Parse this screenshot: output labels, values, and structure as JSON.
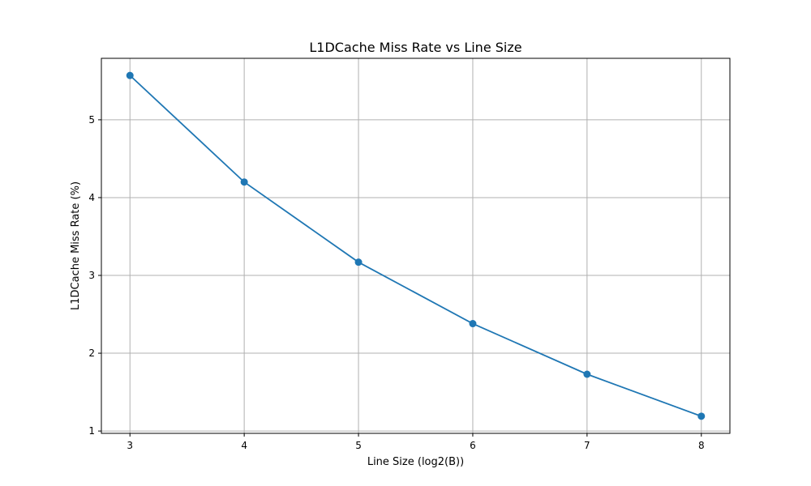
{
  "chart_data": {
    "type": "line",
    "title": "L1DCache Miss Rate vs Line Size",
    "xlabel": "Line Size (log2(B))",
    "ylabel": "L1DCache Miss Rate (%)",
    "x": [
      3,
      4,
      5,
      6,
      7,
      8
    ],
    "series": [
      {
        "values": [
          5.57,
          4.2,
          3.17,
          2.38,
          1.73,
          1.19
        ],
        "color": "#1f77b4"
      }
    ],
    "xticks": [
      "3",
      "4",
      "5",
      "6",
      "7",
      "8"
    ],
    "yticks": [
      "1",
      "2",
      "3",
      "4",
      "5"
    ],
    "xlim": [
      2.75,
      8.25
    ],
    "ylim": [
      0.97,
      5.79
    ],
    "grid": true,
    "legend": false
  }
}
